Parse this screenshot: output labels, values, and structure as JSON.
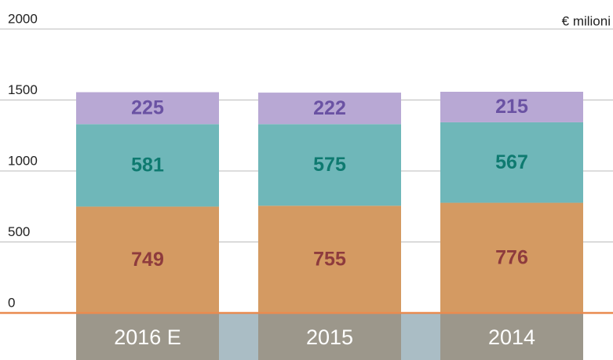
{
  "chart_data": {
    "type": "stacked_bar",
    "unit_label": "€ milioni",
    "categories": [
      "2016 E",
      "2015",
      "2014"
    ],
    "series": [
      {
        "color": "#d49a62",
        "label_color": "#8e3b3d",
        "values": [
          749,
          755,
          776
        ]
      },
      {
        "color": "#6fb7b9",
        "label_color": "#0e7a70",
        "values": [
          581,
          575,
          567
        ]
      },
      {
        "color": "#b8a8d4",
        "label_color": "#6a52a3",
        "values": [
          225,
          222,
          215
        ]
      }
    ],
    "ylim": [
      0,
      2000
    ],
    "yticks": [
      0,
      500,
      1000,
      1500,
      2000
    ],
    "grid": true,
    "category_band_color": "#9c978b",
    "gap_band_color": "#aabdc5",
    "zero_line_color": "#e98b50"
  }
}
